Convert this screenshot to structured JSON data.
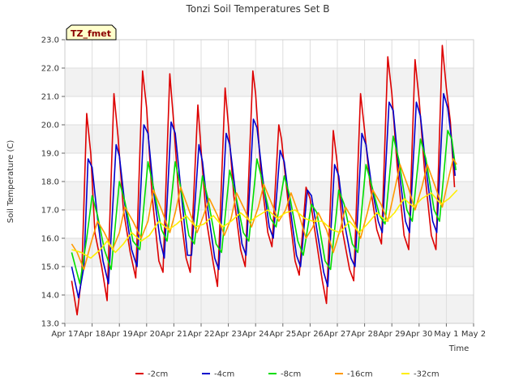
{
  "chart_data": {
    "type": "line",
    "title": "Tonzi Soil Temperatures Set B",
    "xlabel": "Time",
    "ylabel": "Soil Temperature (C)",
    "ylim": [
      13.0,
      23.0
    ],
    "yticks": [
      "13.0",
      "14.0",
      "15.0",
      "16.0",
      "17.0",
      "18.0",
      "19.0",
      "20.0",
      "21.0",
      "22.0",
      "23.0"
    ],
    "xlim": [
      0,
      15
    ],
    "xticks": [
      "Apr 17",
      "Apr 18",
      "Apr 19",
      "Apr 20",
      "Apr 21",
      "Apr 22",
      "Apr 23",
      "Apr 24",
      "Apr 25",
      "Apr 26",
      "Apr 27",
      "Apr 28",
      "Apr 29",
      "Apr 30",
      "May 1",
      "May 2"
    ],
    "grid": true,
    "legend_position": "bottom-center",
    "badge": "TZ_fmet",
    "series": [
      {
        "name": "-2cm",
        "color": "#dd0000",
        "points": [
          [
            0.25,
            14.5
          ],
          [
            0.45,
            13.3
          ],
          [
            0.62,
            14.7
          ],
          [
            0.8,
            20.4
          ],
          [
            0.95,
            19.0
          ],
          [
            1.1,
            16.2
          ],
          [
            1.35,
            15.0
          ],
          [
            1.55,
            13.8
          ],
          [
            1.8,
            21.1
          ],
          [
            1.95,
            19.6
          ],
          [
            2.15,
            17.0
          ],
          [
            2.4,
            15.5
          ],
          [
            2.6,
            14.6
          ],
          [
            2.85,
            21.9
          ],
          [
            3.0,
            20.6
          ],
          [
            3.2,
            17.5
          ],
          [
            3.45,
            15.2
          ],
          [
            3.6,
            14.8
          ],
          [
            3.85,
            21.8
          ],
          [
            4.0,
            20.0
          ],
          [
            4.2,
            17.2
          ],
          [
            4.45,
            15.3
          ],
          [
            4.6,
            14.8
          ],
          [
            4.88,
            20.7
          ],
          [
            5.0,
            19.1
          ],
          [
            5.2,
            16.6
          ],
          [
            5.45,
            15.1
          ],
          [
            5.6,
            14.3
          ],
          [
            5.88,
            21.3
          ],
          [
            6.0,
            20.0
          ],
          [
            6.2,
            17.5
          ],
          [
            6.45,
            15.6
          ],
          [
            6.62,
            15.0
          ],
          [
            6.9,
            21.9
          ],
          [
            7.0,
            21.1
          ],
          [
            7.2,
            18.2
          ],
          [
            7.45,
            16.2
          ],
          [
            7.6,
            15.7
          ],
          [
            7.85,
            20.0
          ],
          [
            7.95,
            19.5
          ],
          [
            8.2,
            17.2
          ],
          [
            8.45,
            15.2
          ],
          [
            8.6,
            14.7
          ],
          [
            8.85,
            17.8
          ],
          [
            9.0,
            17.4
          ],
          [
            9.2,
            16.1
          ],
          [
            9.45,
            14.5
          ],
          [
            9.6,
            13.7
          ],
          [
            9.85,
            19.8
          ],
          [
            10.0,
            18.6
          ],
          [
            10.2,
            16.2
          ],
          [
            10.45,
            14.9
          ],
          [
            10.6,
            14.5
          ],
          [
            10.85,
            21.1
          ],
          [
            11.0,
            19.8
          ],
          [
            11.2,
            17.9
          ],
          [
            11.45,
            16.3
          ],
          [
            11.62,
            15.8
          ],
          [
            11.85,
            22.4
          ],
          [
            12.0,
            21.1
          ],
          [
            12.2,
            18.5
          ],
          [
            12.45,
            16.1
          ],
          [
            12.62,
            15.6
          ],
          [
            12.85,
            22.3
          ],
          [
            13.0,
            20.9
          ],
          [
            13.2,
            18.4
          ],
          [
            13.45,
            16.1
          ],
          [
            13.62,
            15.6
          ],
          [
            13.85,
            22.8
          ],
          [
            14.0,
            21.3
          ],
          [
            14.15,
            20.1
          ],
          [
            14.3,
            17.8
          ]
        ]
      },
      {
        "name": "-4cm",
        "color": "#0000cc",
        "points": [
          [
            0.25,
            15.0
          ],
          [
            0.5,
            13.9
          ],
          [
            0.7,
            15.0
          ],
          [
            0.85,
            18.8
          ],
          [
            1.0,
            18.5
          ],
          [
            1.2,
            16.7
          ],
          [
            1.4,
            15.2
          ],
          [
            1.6,
            14.4
          ],
          [
            1.88,
            19.3
          ],
          [
            2.0,
            18.9
          ],
          [
            2.2,
            17.2
          ],
          [
            2.45,
            15.6
          ],
          [
            2.65,
            15.0
          ],
          [
            2.9,
            20.0
          ],
          [
            3.05,
            19.7
          ],
          [
            3.25,
            17.7
          ],
          [
            3.5,
            15.9
          ],
          [
            3.65,
            15.3
          ],
          [
            3.9,
            20.1
          ],
          [
            4.05,
            19.7
          ],
          [
            4.25,
            17.8
          ],
          [
            4.5,
            15.4
          ],
          [
            4.65,
            15.4
          ],
          [
            4.92,
            19.3
          ],
          [
            5.05,
            18.7
          ],
          [
            5.25,
            17.0
          ],
          [
            5.5,
            15.3
          ],
          [
            5.65,
            14.9
          ],
          [
            5.92,
            19.7
          ],
          [
            6.05,
            19.3
          ],
          [
            6.25,
            17.7
          ],
          [
            6.5,
            15.8
          ],
          [
            6.65,
            15.4
          ],
          [
            6.92,
            20.2
          ],
          [
            7.05,
            19.9
          ],
          [
            7.25,
            18.2
          ],
          [
            7.5,
            16.4
          ],
          [
            7.65,
            16.0
          ],
          [
            7.9,
            19.1
          ],
          [
            8.05,
            18.7
          ],
          [
            8.25,
            17.2
          ],
          [
            8.5,
            15.4
          ],
          [
            8.65,
            15.0
          ],
          [
            8.9,
            17.7
          ],
          [
            9.05,
            17.5
          ],
          [
            9.25,
            16.3
          ],
          [
            9.5,
            14.8
          ],
          [
            9.65,
            14.3
          ],
          [
            9.9,
            18.6
          ],
          [
            10.05,
            18.2
          ],
          [
            10.25,
            16.6
          ],
          [
            10.5,
            15.3
          ],
          [
            10.65,
            15.0
          ],
          [
            10.9,
            19.7
          ],
          [
            11.05,
            19.3
          ],
          [
            11.25,
            17.9
          ],
          [
            11.5,
            16.6
          ],
          [
            11.65,
            16.2
          ],
          [
            11.9,
            20.8
          ],
          [
            12.05,
            20.5
          ],
          [
            12.25,
            18.5
          ],
          [
            12.5,
            16.6
          ],
          [
            12.65,
            16.2
          ],
          [
            12.9,
            20.8
          ],
          [
            13.05,
            20.3
          ],
          [
            13.25,
            18.5
          ],
          [
            13.5,
            16.6
          ],
          [
            13.65,
            16.2
          ],
          [
            13.9,
            21.1
          ],
          [
            14.05,
            20.6
          ],
          [
            14.2,
            19.4
          ],
          [
            14.32,
            18.2
          ]
        ]
      },
      {
        "name": "-8cm",
        "color": "#00dd00",
        "points": [
          [
            0.25,
            15.5
          ],
          [
            0.55,
            14.4
          ],
          [
            0.8,
            16.0
          ],
          [
            1.0,
            17.5
          ],
          [
            1.2,
            16.8
          ],
          [
            1.45,
            15.6
          ],
          [
            1.7,
            14.9
          ],
          [
            2.0,
            18.0
          ],
          [
            2.2,
            17.3
          ],
          [
            2.5,
            15.9
          ],
          [
            2.75,
            15.6
          ],
          [
            3.05,
            18.7
          ],
          [
            3.25,
            17.8
          ],
          [
            3.55,
            16.3
          ],
          [
            3.75,
            15.9
          ],
          [
            4.05,
            18.7
          ],
          [
            4.25,
            17.8
          ],
          [
            4.55,
            16.1
          ],
          [
            4.75,
            15.8
          ],
          [
            5.05,
            18.2
          ],
          [
            5.25,
            17.4
          ],
          [
            5.55,
            15.8
          ],
          [
            5.75,
            15.5
          ],
          [
            6.05,
            18.4
          ],
          [
            6.25,
            17.6
          ],
          [
            6.55,
            16.2
          ],
          [
            6.75,
            15.9
          ],
          [
            7.05,
            18.8
          ],
          [
            7.25,
            18.0
          ],
          [
            7.55,
            16.7
          ],
          [
            7.75,
            16.4
          ],
          [
            8.05,
            18.2
          ],
          [
            8.25,
            17.5
          ],
          [
            8.55,
            15.9
          ],
          [
            8.75,
            15.4
          ],
          [
            9.05,
            17.2
          ],
          [
            9.25,
            16.9
          ],
          [
            9.55,
            15.2
          ],
          [
            9.75,
            14.9
          ],
          [
            10.05,
            17.7
          ],
          [
            10.25,
            17.2
          ],
          [
            10.55,
            15.8
          ],
          [
            10.75,
            15.5
          ],
          [
            11.05,
            18.6
          ],
          [
            11.25,
            17.9
          ],
          [
            11.55,
            16.8
          ],
          [
            11.75,
            16.5
          ],
          [
            12.05,
            19.6
          ],
          [
            12.25,
            18.8
          ],
          [
            12.55,
            17.0
          ],
          [
            12.75,
            16.6
          ],
          [
            13.05,
            19.5
          ],
          [
            13.25,
            18.8
          ],
          [
            13.55,
            17.0
          ],
          [
            13.75,
            16.6
          ],
          [
            14.05,
            19.8
          ],
          [
            14.2,
            19.5
          ],
          [
            14.35,
            18.4
          ]
        ]
      },
      {
        "name": "-16cm",
        "color": "#ff9900",
        "points": [
          [
            0.25,
            15.8
          ],
          [
            0.45,
            15.5
          ],
          [
            0.7,
            14.9
          ],
          [
            0.95,
            15.8
          ],
          [
            1.2,
            16.6
          ],
          [
            1.45,
            16.2
          ],
          [
            1.75,
            15.6
          ],
          [
            2.0,
            16.2
          ],
          [
            2.2,
            17.1
          ],
          [
            2.5,
            16.6
          ],
          [
            2.8,
            16.0
          ],
          [
            3.05,
            16.6
          ],
          [
            3.25,
            17.7
          ],
          [
            3.55,
            17.0
          ],
          [
            3.85,
            16.2
          ],
          [
            4.05,
            16.9
          ],
          [
            4.25,
            17.8
          ],
          [
            4.55,
            17.0
          ],
          [
            4.85,
            16.2
          ],
          [
            5.05,
            16.7
          ],
          [
            5.3,
            17.4
          ],
          [
            5.6,
            16.8
          ],
          [
            5.85,
            16.1
          ],
          [
            6.1,
            16.7
          ],
          [
            6.3,
            17.6
          ],
          [
            6.6,
            17.0
          ],
          [
            6.85,
            16.4
          ],
          [
            7.1,
            17.1
          ],
          [
            7.3,
            17.9
          ],
          [
            7.6,
            17.2
          ],
          [
            7.85,
            16.6
          ],
          [
            8.1,
            17.0
          ],
          [
            8.3,
            17.6
          ],
          [
            8.6,
            16.8
          ],
          [
            8.85,
            16.0
          ],
          [
            9.1,
            16.4
          ],
          [
            9.3,
            16.9
          ],
          [
            9.6,
            16.3
          ],
          [
            9.85,
            15.5
          ],
          [
            10.1,
            16.3
          ],
          [
            10.3,
            17.1
          ],
          [
            10.6,
            16.6
          ],
          [
            10.85,
            16.0
          ],
          [
            11.1,
            16.9
          ],
          [
            11.3,
            17.7
          ],
          [
            11.6,
            17.2
          ],
          [
            11.85,
            16.6
          ],
          [
            12.1,
            17.7
          ],
          [
            12.3,
            18.6
          ],
          [
            12.6,
            17.8
          ],
          [
            12.85,
            17.0
          ],
          [
            13.1,
            17.8
          ],
          [
            13.3,
            18.6
          ],
          [
            13.6,
            17.8
          ],
          [
            13.85,
            17.1
          ],
          [
            14.1,
            18.2
          ],
          [
            14.25,
            18.8
          ],
          [
            14.38,
            18.6
          ]
        ]
      },
      {
        "name": "-32cm",
        "color": "#ffee00",
        "points": [
          [
            0.25,
            15.6
          ],
          [
            0.6,
            15.5
          ],
          [
            0.95,
            15.3
          ],
          [
            1.3,
            15.6
          ],
          [
            1.55,
            15.9
          ],
          [
            1.85,
            15.5
          ],
          [
            2.15,
            15.8
          ],
          [
            2.45,
            16.2
          ],
          [
            2.8,
            15.9
          ],
          [
            3.1,
            16.1
          ],
          [
            3.45,
            16.6
          ],
          [
            3.8,
            16.3
          ],
          [
            4.1,
            16.5
          ],
          [
            4.45,
            16.8
          ],
          [
            4.8,
            16.4
          ],
          [
            5.1,
            16.5
          ],
          [
            5.45,
            16.8
          ],
          [
            5.8,
            16.4
          ],
          [
            6.1,
            16.6
          ],
          [
            6.45,
            16.9
          ],
          [
            6.8,
            16.6
          ],
          [
            7.1,
            16.8
          ],
          [
            7.45,
            17.0
          ],
          [
            7.8,
            16.7
          ],
          [
            8.1,
            16.9
          ],
          [
            8.45,
            17.0
          ],
          [
            8.8,
            16.7
          ],
          [
            9.1,
            16.6
          ],
          [
            9.45,
            16.6
          ],
          [
            9.8,
            16.3
          ],
          [
            10.1,
            16.2
          ],
          [
            10.45,
            16.6
          ],
          [
            10.8,
            16.2
          ],
          [
            11.1,
            16.5
          ],
          [
            11.45,
            16.9
          ],
          [
            11.8,
            16.6
          ],
          [
            12.1,
            16.9
          ],
          [
            12.45,
            17.4
          ],
          [
            12.8,
            17.1
          ],
          [
            13.1,
            17.4
          ],
          [
            13.45,
            17.6
          ],
          [
            13.8,
            17.2
          ],
          [
            14.1,
            17.4
          ],
          [
            14.4,
            17.7
          ]
        ]
      }
    ]
  }
}
